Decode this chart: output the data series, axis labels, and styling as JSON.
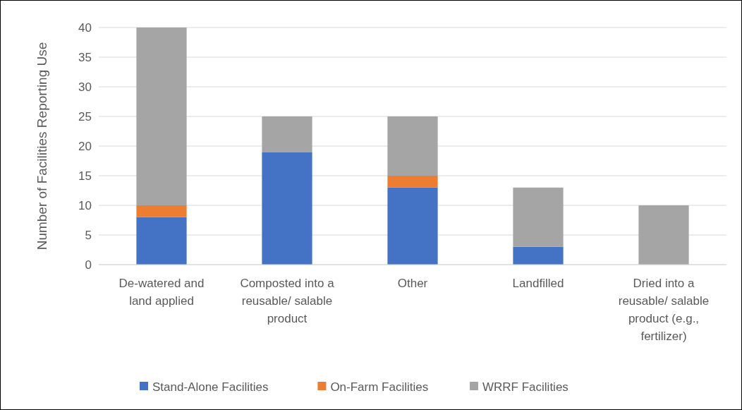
{
  "chart_data": {
    "type": "bar",
    "stacked": true,
    "ylabel": "Number of Facilities Reporting Use",
    "categories": [
      "De-watered and land applied",
      "Composted into a reusable/ salable product",
      "Other",
      "Landfilled",
      "Dried into a reusable/ salable product (e.g., fertilizer)"
    ],
    "series": [
      {
        "name": "Stand-Alone Facilities",
        "color": "#4472c4",
        "values": [
          8,
          19,
          13,
          3,
          0
        ]
      },
      {
        "name": "On-Farm Facilities",
        "color": "#ed7d31",
        "values": [
          2,
          0,
          2,
          0,
          0
        ]
      },
      {
        "name": "WRRF Facilities",
        "color": "#a5a5a5",
        "values": [
          30,
          6,
          10,
          10,
          10
        ]
      }
    ],
    "ylim": [
      0,
      40
    ],
    "yticks": [
      0,
      5,
      10,
      15,
      20,
      25,
      30,
      35,
      40
    ],
    "grid": "y",
    "legend": "bottom"
  }
}
